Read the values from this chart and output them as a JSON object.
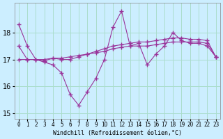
{
  "xlabel": "Windchill (Refroidissement éolien,°C)",
  "hours": [
    0,
    1,
    2,
    3,
    4,
    5,
    6,
    7,
    8,
    9,
    10,
    11,
    12,
    13,
    14,
    15,
    16,
    17,
    18,
    19,
    20,
    21,
    22,
    23
  ],
  "line_max": [
    18.3,
    17.5,
    17.0,
    16.9,
    16.8,
    16.5,
    15.7,
    15.3,
    15.8,
    16.3,
    17.0,
    18.2,
    18.8,
    17.5,
    17.6,
    16.8,
    17.2,
    17.5,
    18.0,
    17.7,
    17.6,
    17.6,
    17.5,
    17.1
  ],
  "line_mean": [
    17.5,
    17.0,
    17.0,
    16.95,
    17.05,
    17.0,
    17.0,
    17.1,
    17.2,
    17.3,
    17.4,
    17.5,
    17.55,
    17.6,
    17.65,
    17.65,
    17.7,
    17.75,
    17.8,
    17.8,
    17.75,
    17.75,
    17.7,
    17.1
  ],
  "line_avg2": [
    17.0,
    17.0,
    17.0,
    17.0,
    17.05,
    17.05,
    17.1,
    17.15,
    17.2,
    17.25,
    17.3,
    17.4,
    17.45,
    17.5,
    17.5,
    17.5,
    17.55,
    17.6,
    17.65,
    17.65,
    17.65,
    17.65,
    17.6,
    17.1
  ],
  "bg_color": "#cceeff",
  "grid_color": "#aaddcc",
  "line_color": "#993399",
  "ylim": [
    14.8,
    19.1
  ],
  "yticks": [
    15,
    16,
    17,
    18
  ],
  "xlim": [
    -0.5,
    23.5
  ]
}
